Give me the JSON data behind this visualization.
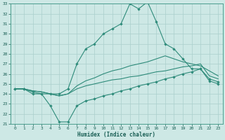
{
  "xlabel": "Humidex (Indice chaleur)",
  "x": [
    0,
    1,
    2,
    3,
    4,
    5,
    6,
    7,
    8,
    9,
    10,
    11,
    12,
    13,
    14,
    15,
    16,
    17,
    18,
    19,
    20,
    21,
    22,
    23
  ],
  "line_top": [
    24.5,
    24.5,
    24.0,
    24.0,
    24.0,
    24.0,
    24.5,
    27.0,
    28.5,
    29.0,
    30.0,
    30.5,
    31.0,
    33.0,
    32.5,
    33.2,
    31.2,
    29.0,
    28.5,
    27.5,
    26.5,
    26.5,
    25.5,
    25.2
  ],
  "line_bottom": [
    24.5,
    24.5,
    24.2,
    24.0,
    22.8,
    21.2,
    21.2,
    22.8,
    23.3,
    23.5,
    23.8,
    24.0,
    24.3,
    24.5,
    24.8,
    25.0,
    25.2,
    25.5,
    25.7,
    26.0,
    26.2,
    26.5,
    25.3,
    25.0
  ],
  "line_upper_mid": [
    24.5,
    24.5,
    24.3,
    24.2,
    24.0,
    23.8,
    24.0,
    24.8,
    25.3,
    25.6,
    26.0,
    26.3,
    26.5,
    26.8,
    27.0,
    27.2,
    27.5,
    27.8,
    27.5,
    27.2,
    27.0,
    26.8,
    26.3,
    25.8
  ],
  "line_lower_mid": [
    24.5,
    24.5,
    24.3,
    24.2,
    24.0,
    23.8,
    24.0,
    24.5,
    24.8,
    25.0,
    25.2,
    25.4,
    25.5,
    25.7,
    25.8,
    26.0,
    26.2,
    26.3,
    26.5,
    26.7,
    26.8,
    27.0,
    25.8,
    25.5
  ],
  "line_color": "#2e8b7a",
  "bg_color": "#cde8e5",
  "grid_color": "#aacfcc",
  "ylim": [
    21,
    33
  ],
  "yticks": [
    21,
    22,
    23,
    24,
    25,
    26,
    27,
    28,
    29,
    30,
    31,
    32,
    33
  ],
  "xlim": [
    -0.5,
    23.5
  ],
  "xticks": [
    0,
    1,
    2,
    3,
    4,
    5,
    6,
    7,
    8,
    9,
    10,
    11,
    12,
    13,
    14,
    15,
    16,
    17,
    18,
    19,
    20,
    21,
    22,
    23
  ]
}
